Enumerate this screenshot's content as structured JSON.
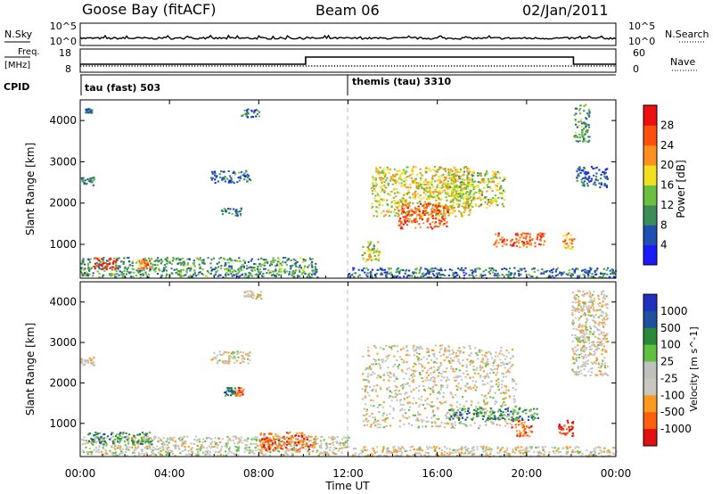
{
  "header": {
    "station": "Goose Bay (fitACF)",
    "beam": "Beam 06",
    "date": "02/Jan/2011"
  },
  "strips": {
    "nsky_label": "N.Sky",
    "nsearch_label": "N.Search",
    "nsky_ticks": [
      "10^5",
      "10^0"
    ],
    "nsearch_ticks": [
      "10^5",
      "10^0"
    ],
    "freq_label_1": "Freq.",
    "freq_label_2": "[MHz]",
    "freq_ticks": [
      "18",
      "8"
    ],
    "nave_label": "Nave",
    "nave_ticks": [
      "60",
      "0"
    ],
    "cpid_label": "CPID",
    "cpid_modes": [
      {
        "label": "tau (fast) 503",
        "start_hour": 0
      },
      {
        "label": "themis (tau) 3310",
        "start_hour": 12
      }
    ]
  },
  "colors": {
    "power": [
      "#1a1aff",
      "#1f4fb0",
      "#3c8c5a",
      "#6cc040",
      "#f0e020",
      "#ff9020",
      "#ff5010",
      "#ee1010"
    ],
    "velocity": [
      "#e01010",
      "#ff6010",
      "#ff9a20",
      "#c8c8c0",
      "#c0c0bc",
      "#60c040",
      "#2a8a3a",
      "#1f50a0",
      "#2030c0"
    ]
  },
  "chart_data": [
    {
      "type": "heatmap",
      "panel": "power",
      "ylabel": "Slant Range [km]",
      "yticks": [
        "1000",
        "2000",
        "3000",
        "4000"
      ],
      "ylim": [
        180,
        4500
      ],
      "xlim": [
        0,
        24
      ],
      "colorbar_label": "Power [dB]",
      "colorbar_ticks": [
        "4",
        "8",
        "12",
        "16",
        "20",
        "24",
        "28"
      ],
      "colorbar_range": [
        0,
        32
      ],
      "regions": [
        {
          "h0": 0.0,
          "h1": 10.6,
          "r0": 220,
          "r1": 700,
          "level": 0.35
        },
        {
          "h0": 0.6,
          "h1": 1.6,
          "r0": 400,
          "r1": 700,
          "level": 0.95
        },
        {
          "h0": 2.5,
          "h1": 3.1,
          "r0": 420,
          "r1": 650,
          "level": 0.75
        },
        {
          "h0": 0.0,
          "h1": 0.6,
          "r0": 2450,
          "r1": 2650,
          "level": 0.3
        },
        {
          "h0": 0.2,
          "h1": 0.5,
          "r0": 4200,
          "r1": 4300,
          "level": 0.25
        },
        {
          "h0": 5.8,
          "h1": 7.6,
          "r0": 2500,
          "r1": 2800,
          "level": 0.25
        },
        {
          "h0": 6.3,
          "h1": 7.2,
          "r0": 1700,
          "r1": 1900,
          "level": 0.3
        },
        {
          "h0": 7.2,
          "h1": 8.0,
          "r0": 4100,
          "r1": 4300,
          "level": 0.25
        },
        {
          "h0": 12.6,
          "h1": 13.4,
          "r0": 600,
          "r1": 1100,
          "level": 0.5
        },
        {
          "h0": 13.0,
          "h1": 17.5,
          "r0": 1700,
          "r1": 2900,
          "level": 0.55
        },
        {
          "h0": 14.2,
          "h1": 16.5,
          "r0": 1400,
          "r1": 2000,
          "level": 0.8
        },
        {
          "h0": 16.5,
          "h1": 19.0,
          "r0": 1900,
          "r1": 2800,
          "level": 0.5
        },
        {
          "h0": 18.5,
          "h1": 20.8,
          "r0": 950,
          "r1": 1300,
          "level": 0.8
        },
        {
          "h0": 21.6,
          "h1": 22.1,
          "r0": 900,
          "r1": 1300,
          "level": 0.7
        },
        {
          "h0": 22.1,
          "h1": 22.8,
          "r0": 3500,
          "r1": 4400,
          "level": 0.35
        },
        {
          "h0": 22.2,
          "h1": 23.6,
          "r0": 2400,
          "r1": 2900,
          "level": 0.2
        },
        {
          "h0": 12.0,
          "h1": 24.0,
          "r0": 200,
          "r1": 450,
          "level": 0.25
        }
      ]
    },
    {
      "type": "heatmap",
      "panel": "velocity",
      "ylabel": "Slant Range [km]",
      "yticks": [
        "1000",
        "2000",
        "3000",
        "4000"
      ],
      "ylim": [
        180,
        4500
      ],
      "xlim": [
        0,
        24
      ],
      "xlabel": "Time UT",
      "xticks": [
        "00:00",
        "04:00",
        "08:00",
        "12:00",
        "16:00",
        "20:00",
        "00:00"
      ],
      "colorbar_label": "Velocity [m s^-1]",
      "colorbar_ticks": [
        "1000",
        "500",
        "100",
        "25",
        "-25",
        "-100",
        "-500",
        "-1000"
      ],
      "regions": [
        {
          "h0": 0.0,
          "h1": 12.0,
          "r0": 220,
          "r1": 700,
          "level": 0.45
        },
        {
          "h0": 0.3,
          "h1": 3.2,
          "r0": 500,
          "r1": 800,
          "level": 0.72
        },
        {
          "h0": 0.0,
          "h1": 0.6,
          "r0": 2450,
          "r1": 2650,
          "level": 0.42
        },
        {
          "h0": 5.8,
          "h1": 7.6,
          "r0": 2500,
          "r1": 2800,
          "level": 0.42
        },
        {
          "h0": 6.4,
          "h1": 6.9,
          "r0": 1700,
          "r1": 1900,
          "level": 0.78
        },
        {
          "h0": 6.9,
          "h1": 7.3,
          "r0": 1700,
          "r1": 1900,
          "level": 0.2
        },
        {
          "h0": 7.3,
          "h1": 8.1,
          "r0": 4100,
          "r1": 4300,
          "level": 0.42
        },
        {
          "h0": 8.0,
          "h1": 10.5,
          "r0": 350,
          "r1": 800,
          "level": 0.2
        },
        {
          "h0": 12.6,
          "h1": 19.5,
          "r0": 900,
          "r1": 2950,
          "level": 0.42
        },
        {
          "h0": 16.5,
          "h1": 20.5,
          "r0": 1100,
          "r1": 1400,
          "level": 0.72
        },
        {
          "h0": 19.3,
          "h1": 20.2,
          "r0": 700,
          "r1": 1100,
          "level": 0.2
        },
        {
          "h0": 21.4,
          "h1": 22.1,
          "r0": 700,
          "r1": 1100,
          "level": 0.12
        },
        {
          "h0": 22.0,
          "h1": 23.6,
          "r0": 2200,
          "r1": 4300,
          "level": 0.42
        },
        {
          "h0": 12.0,
          "h1": 24.0,
          "r0": 200,
          "r1": 450,
          "level": 0.42
        }
      ]
    }
  ]
}
